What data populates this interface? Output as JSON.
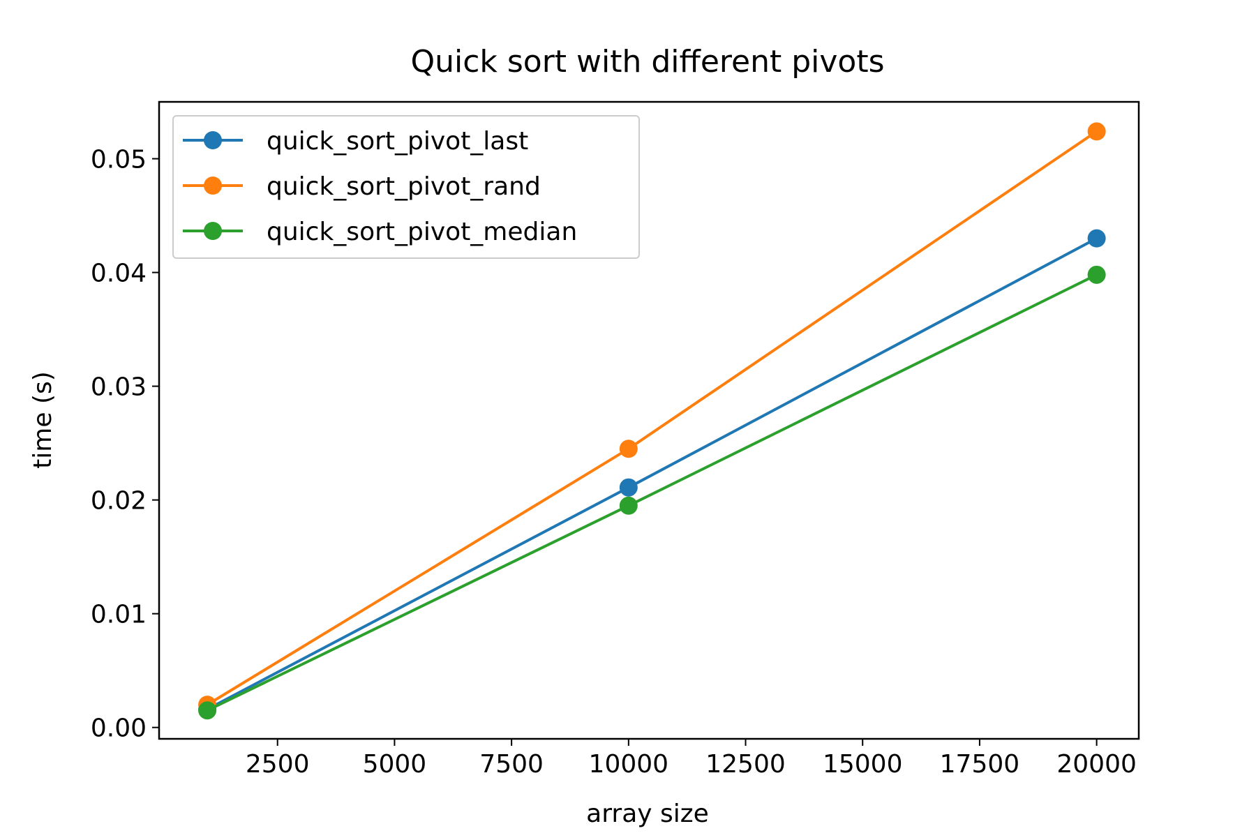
{
  "chart_data": {
    "type": "line",
    "title": "Quick sort with different pivots",
    "xlabel": "array size",
    "ylabel": "time (s)",
    "x": [
      1000,
      10000,
      20000
    ],
    "xlim": [
      -30,
      20900
    ],
    "ylim": [
      -0.001,
      0.055
    ],
    "xticks": [
      {
        "value": 2500,
        "label": "2500"
      },
      {
        "value": 5000,
        "label": "5000"
      },
      {
        "value": 7500,
        "label": "7500"
      },
      {
        "value": 10000,
        "label": "10000"
      },
      {
        "value": 12500,
        "label": "12500"
      },
      {
        "value": 15000,
        "label": "15000"
      },
      {
        "value": 17500,
        "label": "17500"
      },
      {
        "value": 20000,
        "label": "20000"
      }
    ],
    "yticks": [
      {
        "value": 0.0,
        "label": "0.00"
      },
      {
        "value": 0.01,
        "label": "0.01"
      },
      {
        "value": 0.02,
        "label": "0.02"
      },
      {
        "value": 0.03,
        "label": "0.03"
      },
      {
        "value": 0.04,
        "label": "0.04"
      },
      {
        "value": 0.05,
        "label": "0.05"
      }
    ],
    "grid": false,
    "legend_position": "top-left",
    "series": [
      {
        "name": "quick_sort_pivot_last",
        "color": "#1f77b4",
        "values": [
          0.0016,
          0.0211,
          0.043
        ]
      },
      {
        "name": "quick_sort_pivot_rand",
        "color": "#ff7f0e",
        "values": [
          0.002,
          0.0245,
          0.0524
        ]
      },
      {
        "name": "quick_sort_pivot_median",
        "color": "#2ca02c",
        "values": [
          0.0015,
          0.0195,
          0.0398
        ]
      }
    ]
  }
}
